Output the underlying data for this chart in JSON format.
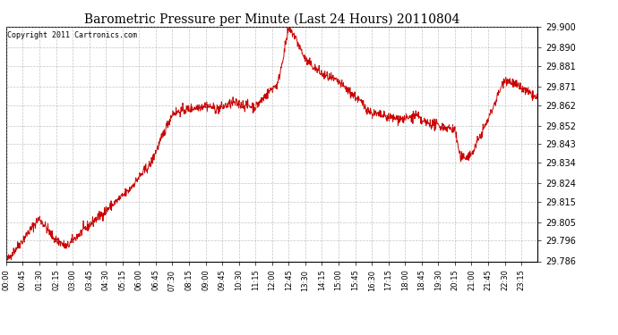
{
  "title": "Barometric Pressure per Minute (Last 24 Hours) 20110804",
  "copyright": "Copyright 2011 Cartronics.com",
  "line_color": "#cc0000",
  "bg_color": "#ffffff",
  "grid_color": "#aaaaaa",
  "ylim": [
    29.786,
    29.9
  ],
  "yticks": [
    29.9,
    29.89,
    29.881,
    29.871,
    29.862,
    29.852,
    29.843,
    29.834,
    29.824,
    29.815,
    29.805,
    29.796,
    29.786
  ],
  "xtick_labels": [
    "00:00",
    "00:45",
    "01:30",
    "02:15",
    "03:00",
    "03:45",
    "04:30",
    "05:15",
    "06:00",
    "06:45",
    "07:30",
    "08:15",
    "09:00",
    "09:45",
    "10:30",
    "11:15",
    "12:00",
    "12:45",
    "13:30",
    "14:15",
    "15:00",
    "15:45",
    "16:30",
    "17:15",
    "18:00",
    "18:45",
    "19:30",
    "20:15",
    "21:00",
    "21:45",
    "22:30",
    "23:15"
  ],
  "key_times": [
    0,
    90,
    130,
    165,
    190,
    240,
    330,
    360,
    390,
    450,
    540,
    570,
    615,
    675,
    720,
    735,
    765,
    780,
    810,
    855,
    900,
    945,
    990,
    1035,
    1080,
    1110,
    1125,
    1170,
    1215,
    1230,
    1260,
    1305,
    1350,
    1395,
    1439
  ],
  "key_vals": [
    29.786,
    29.807,
    29.797,
    29.793,
    29.798,
    29.806,
    29.82,
    29.827,
    29.833,
    29.858,
    29.862,
    29.86,
    29.863,
    29.861,
    29.87,
    29.872,
    29.899,
    29.896,
    29.884,
    29.877,
    29.873,
    29.866,
    29.858,
    29.856,
    29.855,
    29.857,
    29.854,
    29.852,
    29.85,
    29.836,
    29.838,
    29.855,
    29.875,
    29.87,
    29.865
  ]
}
